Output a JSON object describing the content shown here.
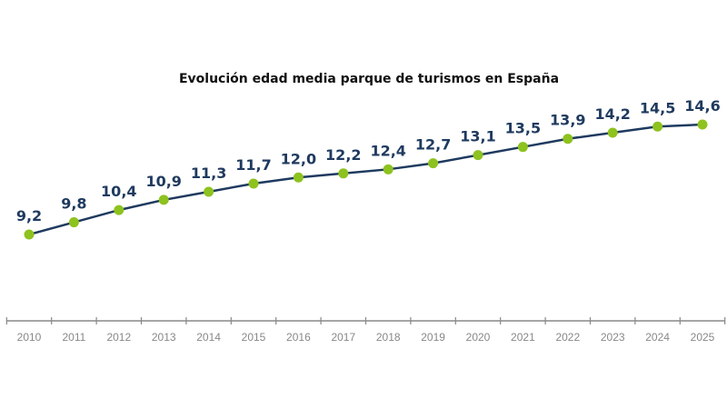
{
  "chart_data": {
    "type": "line",
    "title": "Evolución edad media parque de turismos en España",
    "categories": [
      "2010",
      "2011",
      "2012",
      "2013",
      "2014",
      "2015",
      "2016",
      "2017",
      "2018",
      "2019",
      "2020",
      "2021",
      "2022",
      "2023",
      "2024",
      "2025"
    ],
    "series": [
      {
        "values": [
          9.2,
          9.8,
          10.4,
          10.9,
          11.3,
          11.7,
          12.0,
          12.2,
          12.4,
          12.7,
          13.1,
          13.5,
          13.9,
          14.2,
          14.5,
          14.6
        ],
        "labels": [
          "9,2",
          "9,8",
          "10,4",
          "10,9",
          "11,3",
          "11,7",
          "12,0",
          "12,2",
          "12,4",
          "12,7",
          "13,1",
          "13,5",
          "13,9",
          "14,2",
          "14,5",
          "14,6"
        ]
      }
    ],
    "xlabel": "",
    "ylabel": "",
    "grid": false,
    "y_axis_visible": false,
    "colors": {
      "line": "#1f3a5f",
      "marker": "#8dc21f",
      "label": "#1f3a5f",
      "axis": "#888888"
    }
  }
}
